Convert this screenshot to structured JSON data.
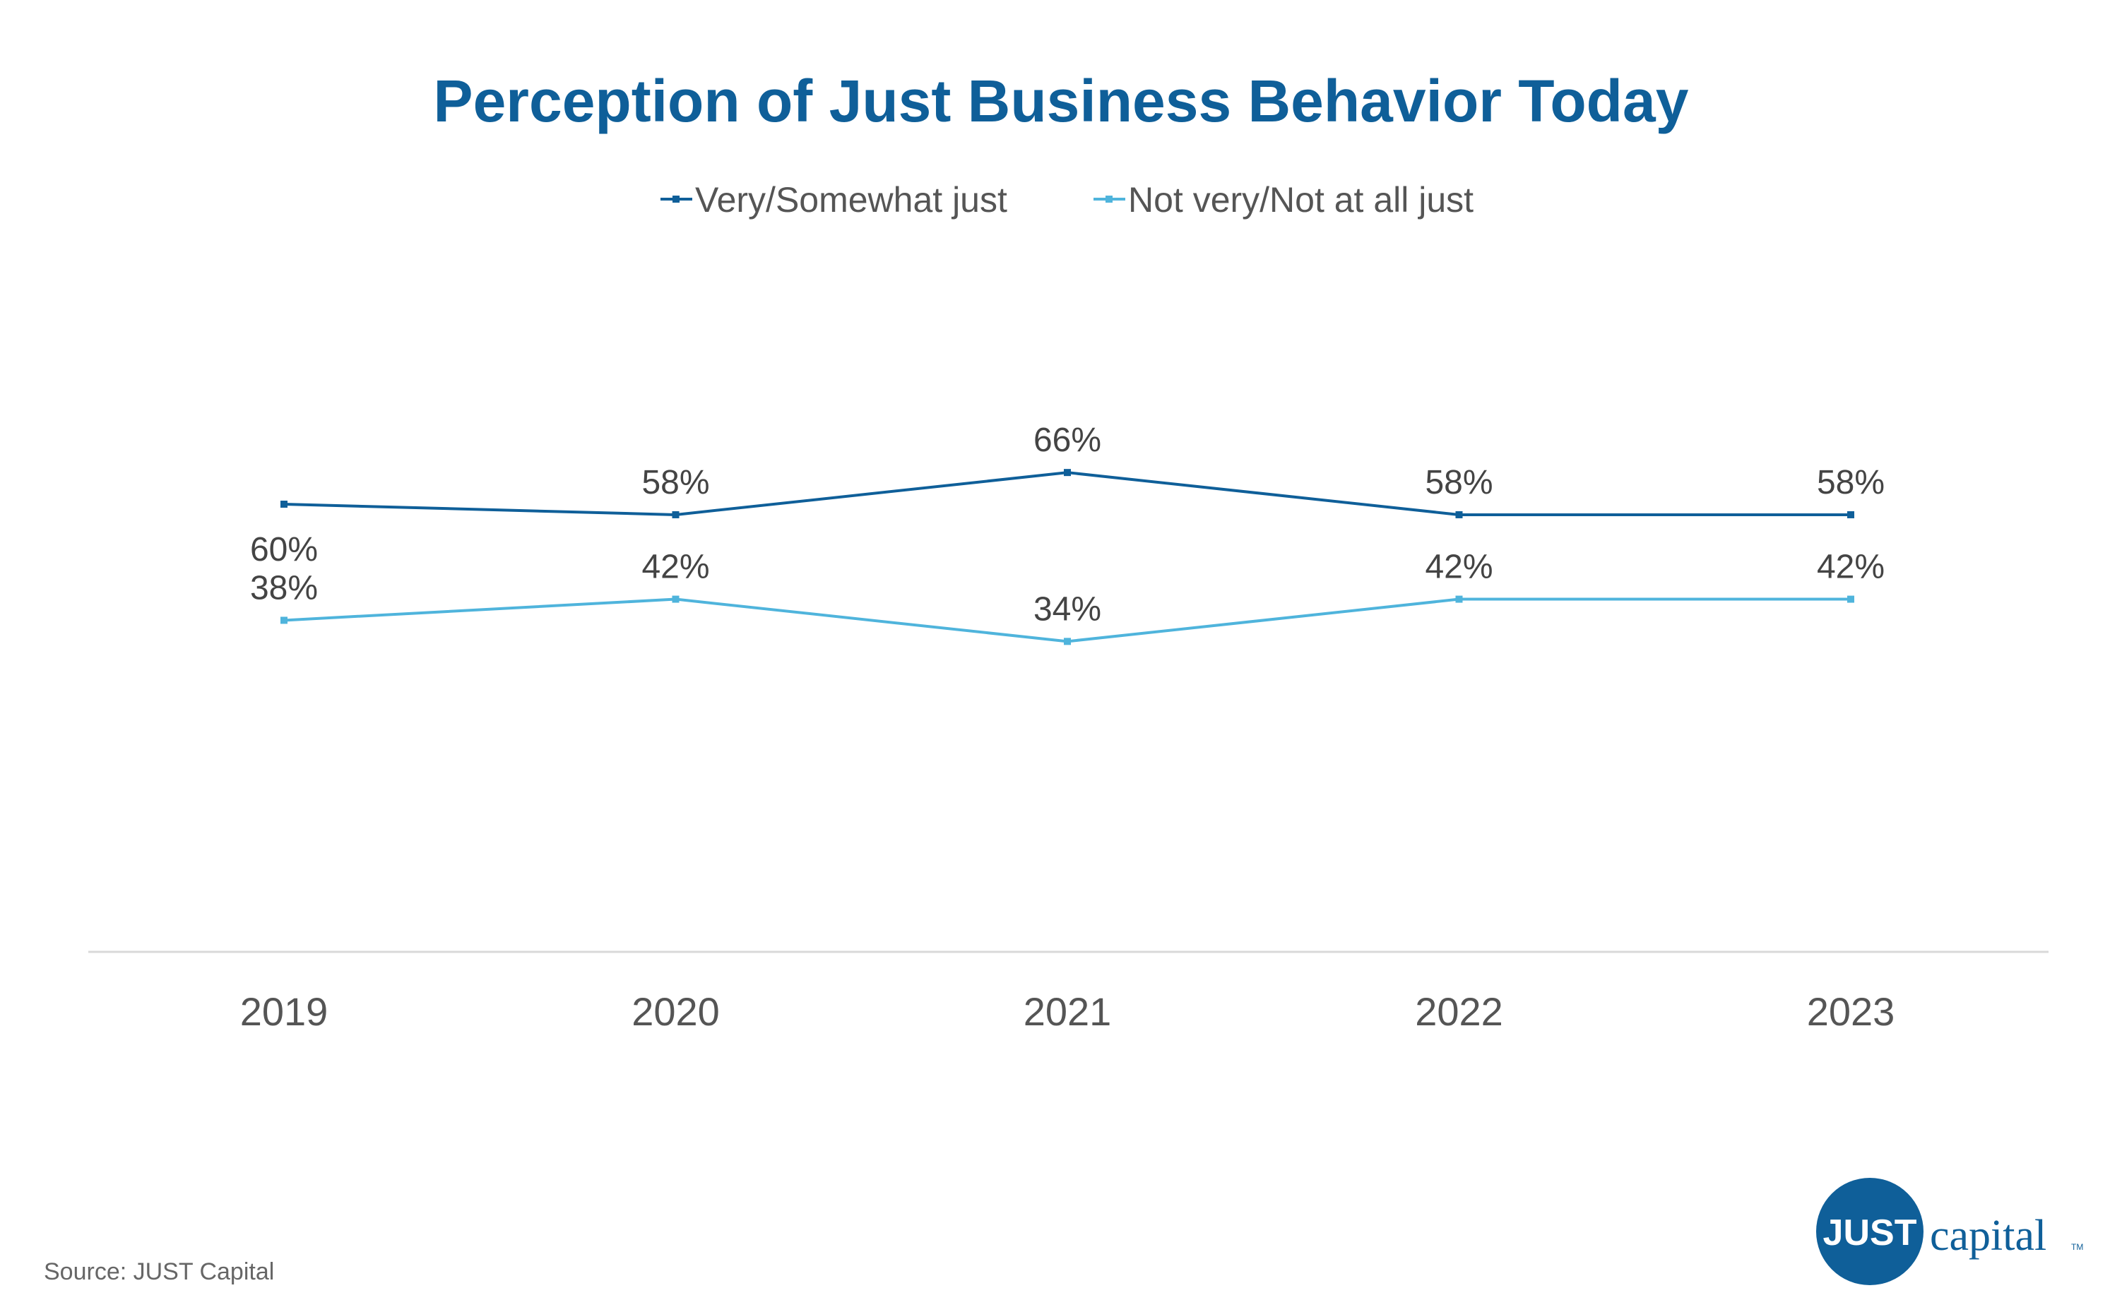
{
  "source": "Source: JUST Capital",
  "logo": {
    "mark_text": "JUST",
    "word": "capital",
    "tm": "TM"
  },
  "colors": {
    "title": "#0f5f99",
    "series_dark": "#0f5f99",
    "series_light": "#4fb4dc",
    "axis": "#d9d9d9",
    "text": "#555555"
  },
  "chart_data": {
    "type": "line",
    "title": "Perception of Just Business Behavior Today",
    "xlabel": "",
    "ylabel": "",
    "categories": [
      "2019",
      "2020",
      "2021",
      "2022",
      "2023"
    ],
    "ylim": [
      0,
      100
    ],
    "grid": false,
    "legend_position": "top-center",
    "series": [
      {
        "name": "Very/Somewhat just",
        "values": [
          60,
          58,
          66,
          58,
          58
        ],
        "labels": [
          "60%",
          "58%",
          "66%",
          "58%",
          "58%"
        ],
        "label_position": [
          "below",
          "above",
          "above",
          "above",
          "above"
        ],
        "color": "#0f5f99"
      },
      {
        "name": "Not very/Not at all just",
        "values": [
          38,
          42,
          34,
          42,
          42
        ],
        "labels": [
          "38%",
          "42%",
          "34%",
          "42%",
          "42%"
        ],
        "label_position": [
          "above",
          "above",
          "above",
          "above",
          "above"
        ],
        "color": "#4fb4dc"
      }
    ]
  }
}
